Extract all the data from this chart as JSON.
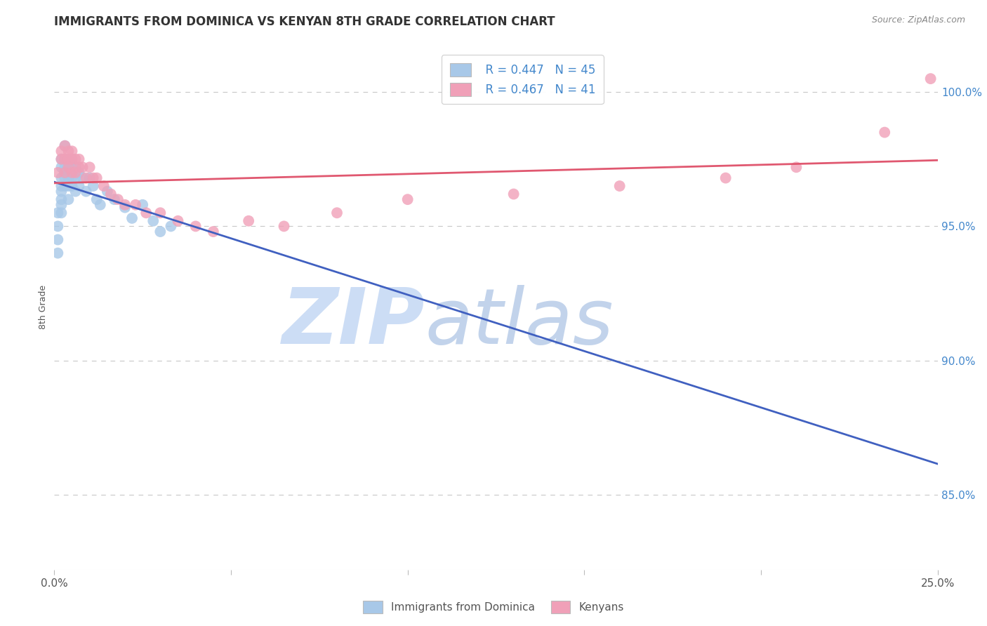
{
  "title": "IMMIGRANTS FROM DOMINICA VS KENYAN 8TH GRADE CORRELATION CHART",
  "source": "Source: ZipAtlas.com",
  "ylabel": "8th Grade",
  "y_ticks": [
    0.85,
    0.9,
    0.95,
    1.0
  ],
  "y_tick_labels": [
    "85.0%",
    "90.0%",
    "95.0%",
    "100.0%"
  ],
  "x_range": [
    0.0,
    0.25
  ],
  "y_range": [
    0.822,
    1.018
  ],
  "blue_R": 0.447,
  "blue_N": 45,
  "pink_R": 0.467,
  "pink_N": 41,
  "blue_color": "#a8c8e8",
  "pink_color": "#f0a0b8",
  "blue_line_color": "#4060c0",
  "pink_line_color": "#e05870",
  "legend_label_blue": "Immigrants from Dominica",
  "legend_label_pink": "Kenyans",
  "title_color": "#333333",
  "grid_color": "#c8c8c8",
  "right_axis_color": "#4488cc",
  "blue_x": [
    0.001,
    0.001,
    0.001,
    0.001,
    0.002,
    0.002,
    0.002,
    0.002,
    0.002,
    0.002,
    0.002,
    0.002,
    0.003,
    0.003,
    0.003,
    0.003,
    0.003,
    0.003,
    0.004,
    0.004,
    0.004,
    0.004,
    0.005,
    0.005,
    0.005,
    0.005,
    0.006,
    0.006,
    0.006,
    0.007,
    0.007,
    0.008,
    0.009,
    0.01,
    0.011,
    0.012,
    0.013,
    0.015,
    0.017,
    0.02,
    0.022,
    0.025,
    0.028,
    0.03,
    0.033
  ],
  "blue_y": [
    0.955,
    0.95,
    0.945,
    0.94,
    0.975,
    0.972,
    0.968,
    0.965,
    0.963,
    0.96,
    0.958,
    0.955,
    0.98,
    0.975,
    0.972,
    0.97,
    0.968,
    0.965,
    0.972,
    0.968,
    0.965,
    0.96,
    0.975,
    0.972,
    0.968,
    0.965,
    0.972,
    0.968,
    0.963,
    0.97,
    0.965,
    0.968,
    0.963,
    0.968,
    0.965,
    0.96,
    0.958,
    0.963,
    0.96,
    0.957,
    0.953,
    0.958,
    0.952,
    0.948,
    0.95
  ],
  "pink_x": [
    0.001,
    0.002,
    0.002,
    0.003,
    0.003,
    0.003,
    0.004,
    0.004,
    0.004,
    0.005,
    0.005,
    0.005,
    0.006,
    0.006,
    0.007,
    0.007,
    0.008,
    0.009,
    0.01,
    0.011,
    0.012,
    0.014,
    0.016,
    0.018,
    0.02,
    0.023,
    0.026,
    0.03,
    0.035,
    0.04,
    0.045,
    0.055,
    0.065,
    0.08,
    0.1,
    0.13,
    0.16,
    0.19,
    0.21,
    0.235,
    0.248
  ],
  "pink_y": [
    0.97,
    0.978,
    0.975,
    0.98,
    0.975,
    0.97,
    0.978,
    0.975,
    0.972,
    0.978,
    0.975,
    0.97,
    0.975,
    0.97,
    0.975,
    0.972,
    0.972,
    0.968,
    0.972,
    0.968,
    0.968,
    0.965,
    0.962,
    0.96,
    0.958,
    0.958,
    0.955,
    0.955,
    0.952,
    0.95,
    0.948,
    0.952,
    0.95,
    0.955,
    0.96,
    0.962,
    0.965,
    0.968,
    0.972,
    0.985,
    1.005
  ],
  "blue_line_x": [
    0.0,
    0.033
  ],
  "blue_line_y_intercept": 0.94,
  "blue_line_slope": 0.85,
  "pink_line_x": [
    0.0,
    0.248
  ],
  "pink_line_y_intercept": 0.96,
  "pink_line_slope": 0.13
}
